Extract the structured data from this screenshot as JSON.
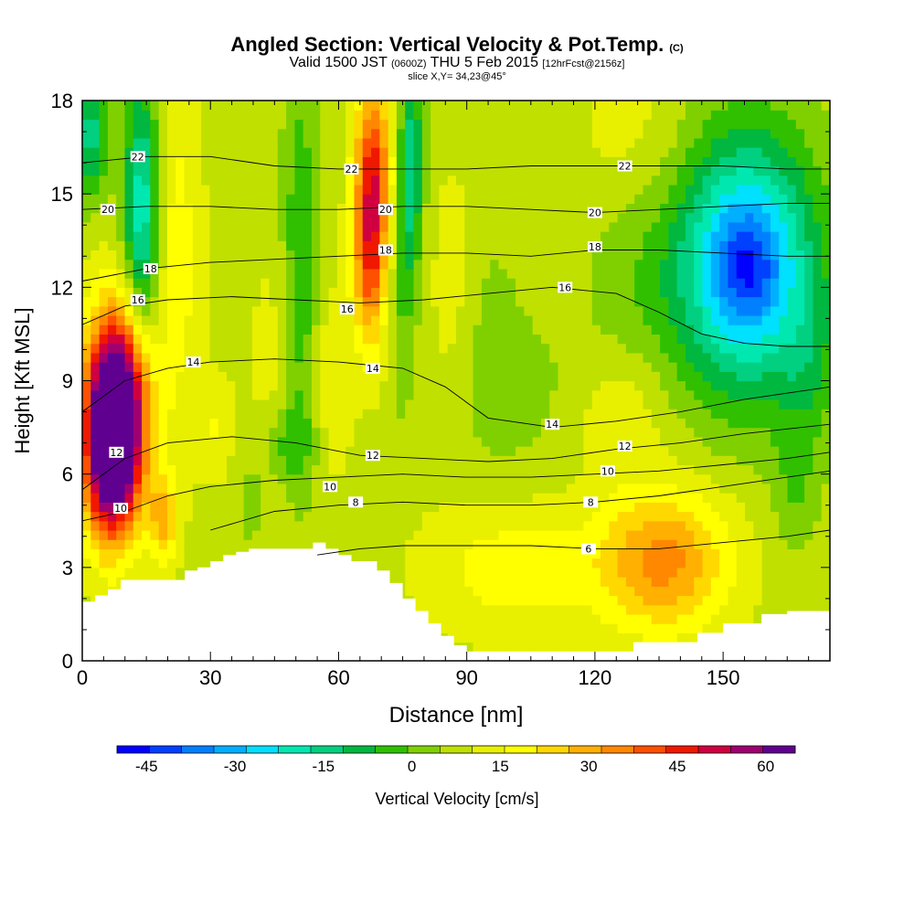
{
  "titles": {
    "main": "Angled Section: Vertical Velocity & Pot.Temp.",
    "main_unit": "(C)",
    "valid_a": "Valid 1500 JST",
    "valid_b": "(0600Z)",
    "valid_c": "THU 5 Feb 2015",
    "valid_d": "[12hrFcst@2156z]",
    "slice": "slice X,Y= 34,23@45°"
  },
  "chart_data": {
    "type": "heatmap",
    "xlabel": "Distance [nm]",
    "ylabel": "Height [Kft MSL]",
    "xlim": [
      0,
      175
    ],
    "ylim": [
      0,
      18
    ],
    "x_ticks": [
      0,
      30,
      60,
      90,
      120,
      150
    ],
    "y_ticks": [
      0,
      3,
      6,
      9,
      12,
      15,
      18
    ],
    "colorbar": {
      "label": "Vertical Velocity [cm/s]",
      "min": -50,
      "max": 65,
      "step": 5,
      "tick_values": [
        -45,
        -30,
        -15,
        0,
        15,
        30,
        45,
        60
      ],
      "tick_labels": [
        "-45",
        "-30",
        "-15",
        "0",
        "15",
        "30",
        "45",
        "60"
      ],
      "colors": [
        "#0000ff",
        "#0040ff",
        "#0080ff",
        "#00b0ff",
        "#00e0ff",
        "#00e8b0",
        "#00d080",
        "#00b840",
        "#30c000",
        "#80d000",
        "#c0e000",
        "#e8f000",
        "#ffff00",
        "#ffd800",
        "#ffb000",
        "#ff8800",
        "#ff5000",
        "#f01800",
        "#d00040",
        "#a00070",
        "#600090"
      ]
    },
    "terrain": {
      "x": [
        0,
        3,
        3,
        6,
        6,
        9,
        9,
        24,
        24,
        27,
        27,
        30,
        30,
        33,
        33,
        36,
        36,
        39,
        39,
        42,
        42,
        45,
        45,
        54,
        54,
        57,
        57,
        60,
        60,
        63,
        63,
        69,
        69,
        72,
        72,
        75,
        75,
        78,
        78,
        81,
        81,
        84,
        84,
        87,
        87,
        90,
        90,
        129,
        129,
        144,
        144,
        150,
        150,
        159,
        159,
        165,
        165,
        175
      ],
      "height": [
        1.9,
        1.9,
        2.1,
        2.1,
        2.3,
        2.3,
        2.6,
        2.6,
        2.9,
        2.9,
        3.0,
        3.0,
        3.2,
        3.2,
        3.4,
        3.4,
        3.5,
        3.5,
        3.6,
        3.6,
        3.6,
        3.6,
        3.6,
        3.6,
        3.8,
        3.8,
        3.6,
        3.6,
        3.4,
        3.4,
        3.2,
        3.2,
        2.9,
        2.9,
        2.5,
        2.5,
        2.0,
        2.0,
        1.6,
        1.6,
        1.2,
        1.2,
        0.8,
        0.8,
        0.5,
        0.5,
        0.3,
        0.3,
        0.6,
        0.6,
        0.9,
        0.9,
        1.2,
        1.2,
        1.5,
        1.5,
        1.6,
        1.6
      ]
    },
    "velocity_features": [
      {
        "x": 8,
        "y": 8.0,
        "sx": 5,
        "sy": 2.2,
        "w": 70
      },
      {
        "x": 6,
        "y": 6.0,
        "sx": 4,
        "sy": 1.8,
        "w": 25
      },
      {
        "x": 19,
        "y": 4.6,
        "sx": 2.5,
        "sy": 1.0,
        "w": 18
      },
      {
        "x": 14,
        "y": 14.5,
        "sx": 3,
        "sy": 3.0,
        "w": -27
      },
      {
        "x": 2,
        "y": 17.0,
        "sx": 3,
        "sy": 1.5,
        "w": -20
      },
      {
        "x": 22,
        "y": 13.0,
        "sx": 4,
        "sy": 4.0,
        "w": 10
      },
      {
        "x": 51,
        "y": 12.5,
        "sx": 3,
        "sy": 5.0,
        "w": -13
      },
      {
        "x": 46,
        "y": 9.0,
        "sx": 5,
        "sy": 3.0,
        "w": 5
      },
      {
        "x": 68,
        "y": 15.5,
        "sx": 3,
        "sy": 2.5,
        "w": 33
      },
      {
        "x": 67,
        "y": 12.5,
        "sx": 2.5,
        "sy": 2.0,
        "w": 18
      },
      {
        "x": 77,
        "y": 16.0,
        "sx": 2,
        "sy": 2.5,
        "w": -20
      },
      {
        "x": 75,
        "y": 12.0,
        "sx": 2,
        "sy": 3.0,
        "w": -8
      },
      {
        "x": 87,
        "y": 12.0,
        "sx": 4,
        "sy": 3.0,
        "w": 5
      },
      {
        "x": 130,
        "y": 16.5,
        "sx": 10,
        "sy": 2.0,
        "w": 6
      },
      {
        "x": 155,
        "y": 12.8,
        "sx": 12,
        "sy": 3.0,
        "w": -38
      },
      {
        "x": 156,
        "y": 12.6,
        "sx": 5,
        "sy": 1.2,
        "w": -12
      },
      {
        "x": 128,
        "y": 12.8,
        "sx": 8,
        "sy": 3.0,
        "w": -5
      },
      {
        "x": 170,
        "y": 9.5,
        "sx": 5,
        "sy": 2.0,
        "w": -8
      },
      {
        "x": 136,
        "y": 3.2,
        "sx": 11,
        "sy": 1.6,
        "w": 24
      },
      {
        "x": 100,
        "y": 3.0,
        "sx": 14,
        "sy": 1.5,
        "w": 10
      },
      {
        "x": 125,
        "y": 8.0,
        "sx": 8,
        "sy": 1.5,
        "w": 8
      },
      {
        "x": 48,
        "y": 7.0,
        "sx": 4,
        "sy": 1.0,
        "w": -10
      },
      {
        "x": 31,
        "y": 7.5,
        "sx": 3,
        "sy": 1.2,
        "w": 7
      },
      {
        "x": 40,
        "y": 5.0,
        "sx": 3,
        "sy": 1.0,
        "w": -6
      },
      {
        "x": 95,
        "y": 10.0,
        "sx": 6,
        "sy": 3.0,
        "w": -5
      },
      {
        "x": 110,
        "y": 8.5,
        "sx": 10,
        "sy": 2.0,
        "w": -4
      },
      {
        "x": 167,
        "y": 5.5,
        "sx": 4,
        "sy": 1.5,
        "w": -7
      },
      {
        "x": 59,
        "y": 9.0,
        "sx": 3,
        "sy": 2.0,
        "w": 7
      }
    ],
    "isentropes": [
      {
        "label": "6",
        "x": [
          55,
          65,
          75,
          90,
          105,
          120,
          135,
          150,
          165,
          175
        ],
        "y": [
          3.4,
          3.6,
          3.7,
          3.7,
          3.7,
          3.6,
          3.6,
          3.8,
          4.0,
          4.2
        ],
        "label_x": [
          118.5
        ],
        "label_y": [
          3.6
        ]
      },
      {
        "label": "8",
        "x": [
          30,
          45,
          60,
          75,
          90,
          105,
          120,
          135,
          150,
          165,
          175
        ],
        "y": [
          4.2,
          4.8,
          5.0,
          5.1,
          5.0,
          5.0,
          5.1,
          5.3,
          5.6,
          5.9,
          6.1
        ],
        "label_x": [
          64,
          119
        ],
        "label_y": [
          5.1,
          5.1
        ]
      },
      {
        "label": "10",
        "x": [
          0,
          10,
          20,
          30,
          45,
          60,
          75,
          90,
          105,
          120,
          135,
          150,
          165,
          175
        ],
        "y": [
          4.5,
          4.8,
          5.3,
          5.6,
          5.8,
          5.9,
          6.0,
          5.9,
          5.9,
          6.0,
          6.1,
          6.3,
          6.5,
          6.7
        ],
        "label_x": [
          9,
          58,
          123
        ],
        "label_y": [
          4.9,
          5.6,
          6.1
        ]
      },
      {
        "label": "12",
        "x": [
          0,
          10,
          20,
          35,
          50,
          65,
          80,
          95,
          110,
          125,
          140,
          155,
          175
        ],
        "y": [
          5.5,
          6.5,
          7.0,
          7.2,
          7.0,
          6.6,
          6.5,
          6.4,
          6.5,
          6.8,
          7.0,
          7.3,
          7.6
        ],
        "label_x": [
          8,
          68,
          127
        ],
        "label_y": [
          6.7,
          6.6,
          6.9
        ]
      },
      {
        "label": "14",
        "x": [
          0,
          10,
          20,
          30,
          45,
          60,
          75,
          85,
          95,
          110,
          125,
          140,
          155,
          175
        ],
        "y": [
          8.0,
          9.0,
          9.4,
          9.6,
          9.7,
          9.6,
          9.4,
          8.8,
          7.8,
          7.5,
          7.7,
          8.0,
          8.4,
          8.8
        ],
        "label_x": [
          26,
          68,
          110
        ],
        "label_y": [
          9.6,
          9.4,
          7.6
        ]
      },
      {
        "label": "16",
        "x": [
          0,
          10,
          20,
          35,
          50,
          65,
          80,
          95,
          110,
          125,
          135,
          145,
          155,
          165,
          175
        ],
        "y": [
          10.8,
          11.4,
          11.6,
          11.7,
          11.6,
          11.5,
          11.6,
          11.8,
          12.0,
          11.8,
          11.2,
          10.5,
          10.2,
          10.1,
          10.1
        ],
        "label_x": [
          13,
          62,
          113
        ],
        "label_y": [
          11.6,
          11.3,
          12.0
        ]
      },
      {
        "label": "18",
        "x": [
          0,
          15,
          30,
          45,
          60,
          75,
          90,
          105,
          120,
          135,
          150,
          165,
          175
        ],
        "y": [
          12.2,
          12.6,
          12.8,
          12.9,
          13.0,
          13.1,
          13.1,
          13.0,
          13.2,
          13.2,
          13.1,
          13.0,
          13.0
        ],
        "label_x": [
          16,
          71,
          120
        ],
        "label_y": [
          12.6,
          13.2,
          13.3
        ]
      },
      {
        "label": "20",
        "x": [
          0,
          15,
          30,
          45,
          60,
          75,
          90,
          105,
          120,
          135,
          150,
          165,
          175
        ],
        "y": [
          14.5,
          14.6,
          14.6,
          14.5,
          14.5,
          14.6,
          14.6,
          14.5,
          14.4,
          14.5,
          14.6,
          14.7,
          14.7
        ],
        "label_x": [
          6,
          71,
          120
        ],
        "label_y": [
          14.5,
          14.5,
          14.4
        ]
      },
      {
        "label": "22",
        "x": [
          0,
          15,
          30,
          45,
          60,
          75,
          90,
          105,
          120,
          135,
          150,
          165,
          175
        ],
        "y": [
          16.0,
          16.2,
          16.2,
          15.9,
          15.8,
          15.8,
          15.8,
          15.9,
          15.9,
          15.9,
          15.9,
          15.8,
          15.8
        ],
        "label_x": [
          13,
          63,
          127
        ],
        "label_y": [
          16.2,
          15.8,
          15.9
        ]
      }
    ]
  }
}
